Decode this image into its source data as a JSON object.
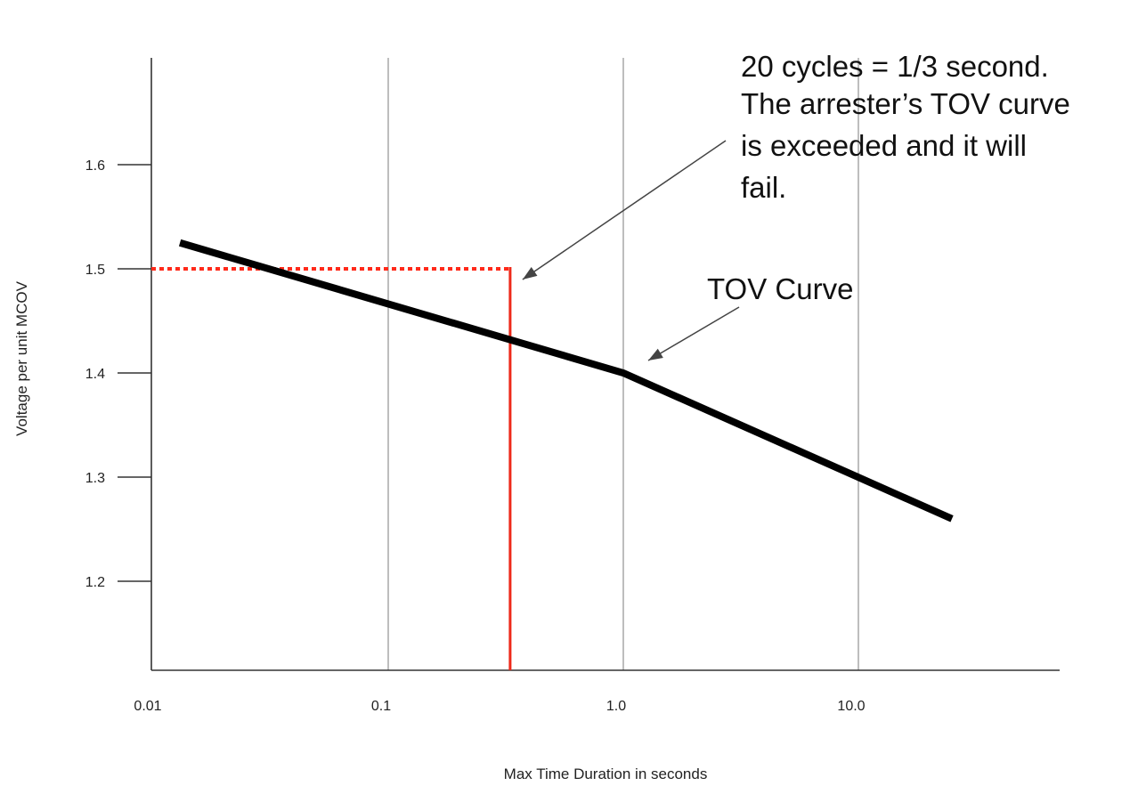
{
  "chart_data": {
    "type": "line",
    "title": "",
    "xlabel": "Max Time Duration in seconds",
    "ylabel": "Voltage per unit MCOV",
    "x_scale": "log",
    "xlim": [
      0.01,
      30
    ],
    "ylim": [
      1.11,
      1.69
    ],
    "x_tick_labels": [
      "0.01",
      "0.1",
      "1.0",
      "10.0"
    ],
    "x_ticks": [
      0.01,
      0.1,
      1.0,
      10.0
    ],
    "y_tick_labels": [
      "1.6",
      "1.5",
      "1.4",
      "1.3",
      "1.2"
    ],
    "y_ticks": [
      1.6,
      1.5,
      1.4,
      1.3,
      1.2
    ],
    "grid": "vertical lines at 0.1, 1.0, 10.0",
    "series": [
      {
        "name": "TOV Curve",
        "color": "#000000",
        "x": [
          0.013,
          1.0,
          25
        ],
        "y": [
          1.525,
          1.4,
          1.26
        ]
      }
    ],
    "reference_lines": {
      "horizontal": {
        "y": 1.5,
        "x_from": 0.01,
        "x_to": 0.33,
        "style": "dotted",
        "color": "#ff2a1a"
      },
      "vertical": {
        "x": 0.33,
        "y_from": 1.11,
        "y_to": 1.5,
        "style": "solid",
        "color": "#ee2a1a"
      }
    },
    "annotations": [
      {
        "lines": [
          "20 cycles = 1/3 second.",
          "The arrester’s TOV curve",
          "is exceeded and it will",
          "fail."
        ]
      },
      {
        "lines": [
          "TOV Curve"
        ]
      }
    ]
  }
}
